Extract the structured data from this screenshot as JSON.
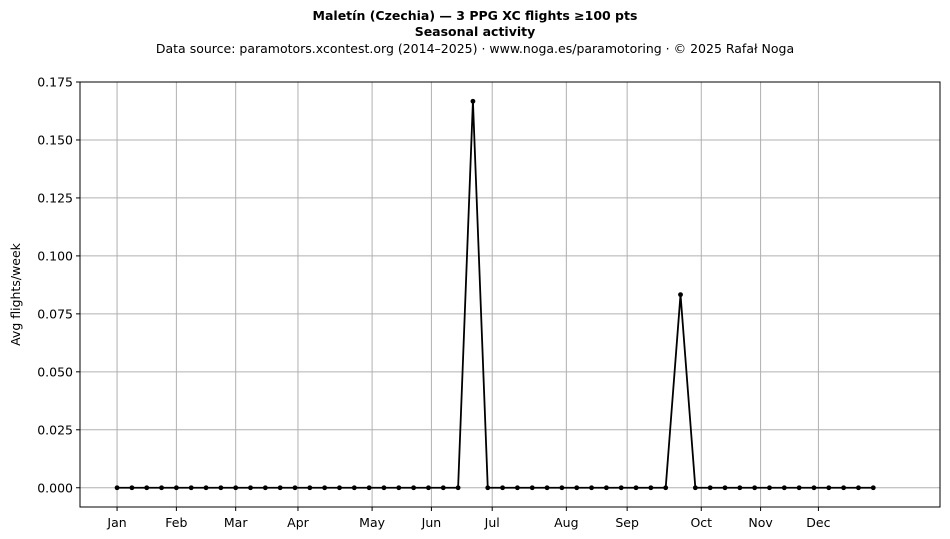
{
  "header": {
    "title": "Maletín (Czechia)  —  3 PPG XC flights ≥100 pts",
    "subtitle": "Seasonal activity",
    "source": "Data source: paramotors.xcontest.org (2014–2025)  ·  www.noga.es/paramotoring  ·  © 2025 Rafał Noga"
  },
  "chart_data": {
    "type": "line",
    "title": "Maletín (Czechia)  —  3 PPG XC flights ≥100 pts",
    "subtitle": "Seasonal activity",
    "xlabel": "",
    "ylabel": "Avg flights/week",
    "xlim": [
      -2.5,
      55.5
    ],
    "ylim": [
      -0.0083,
      0.175
    ],
    "grid": true,
    "line_color": "#000000",
    "grid_color": "#b0b0b0",
    "x_ticks": [
      {
        "label": "Jan",
        "week": 0
      },
      {
        "label": "Feb",
        "week": 4
      },
      {
        "label": "Mar",
        "week": 8
      },
      {
        "label": "Apr",
        "week": 12.2
      },
      {
        "label": "May",
        "week": 17.2
      },
      {
        "label": "Jun",
        "week": 21.2
      },
      {
        "label": "Jul",
        "week": 25.3
      },
      {
        "label": "Aug",
        "week": 30.3
      },
      {
        "label": "Sep",
        "week": 34.4
      },
      {
        "label": "Oct",
        "week": 39.4
      },
      {
        "label": "Nov",
        "week": 43.4
      },
      {
        "label": "Dec",
        "week": 47.3
      }
    ],
    "y_ticks": [
      {
        "label": "0.000",
        "value": 0
      },
      {
        "label": "0.025",
        "value": 0.025
      },
      {
        "label": "0.050",
        "value": 0.05
      },
      {
        "label": "0.075",
        "value": 0.075
      },
      {
        "label": "0.100",
        "value": 0.1
      },
      {
        "label": "0.125",
        "value": 0.125
      },
      {
        "label": "0.150",
        "value": 0.15
      },
      {
        "label": "0.175",
        "value": 0.175
      }
    ],
    "series": [
      {
        "x": [
          0,
          1,
          2,
          3,
          4,
          5,
          6,
          7,
          8,
          9,
          10,
          11,
          12,
          13,
          14,
          15,
          16,
          17,
          18,
          19,
          20,
          21,
          22,
          23,
          24,
          25,
          26,
          27,
          28,
          29,
          30,
          31,
          32,
          33,
          34,
          35,
          36,
          37,
          38,
          39,
          40,
          41,
          42,
          43,
          44,
          45,
          46,
          47,
          48,
          49,
          50,
          51
        ],
        "values": [
          0,
          0,
          0,
          0,
          0,
          0,
          0,
          0,
          0,
          0,
          0,
          0,
          0,
          0,
          0,
          0,
          0,
          0,
          0,
          0,
          0,
          0,
          0,
          0,
          0.1667,
          0,
          0,
          0,
          0,
          0,
          0,
          0,
          0,
          0,
          0,
          0,
          0,
          0,
          0.0833,
          0,
          0,
          0,
          0,
          0,
          0,
          0,
          0,
          0,
          0,
          0,
          0,
          0
        ]
      }
    ]
  }
}
